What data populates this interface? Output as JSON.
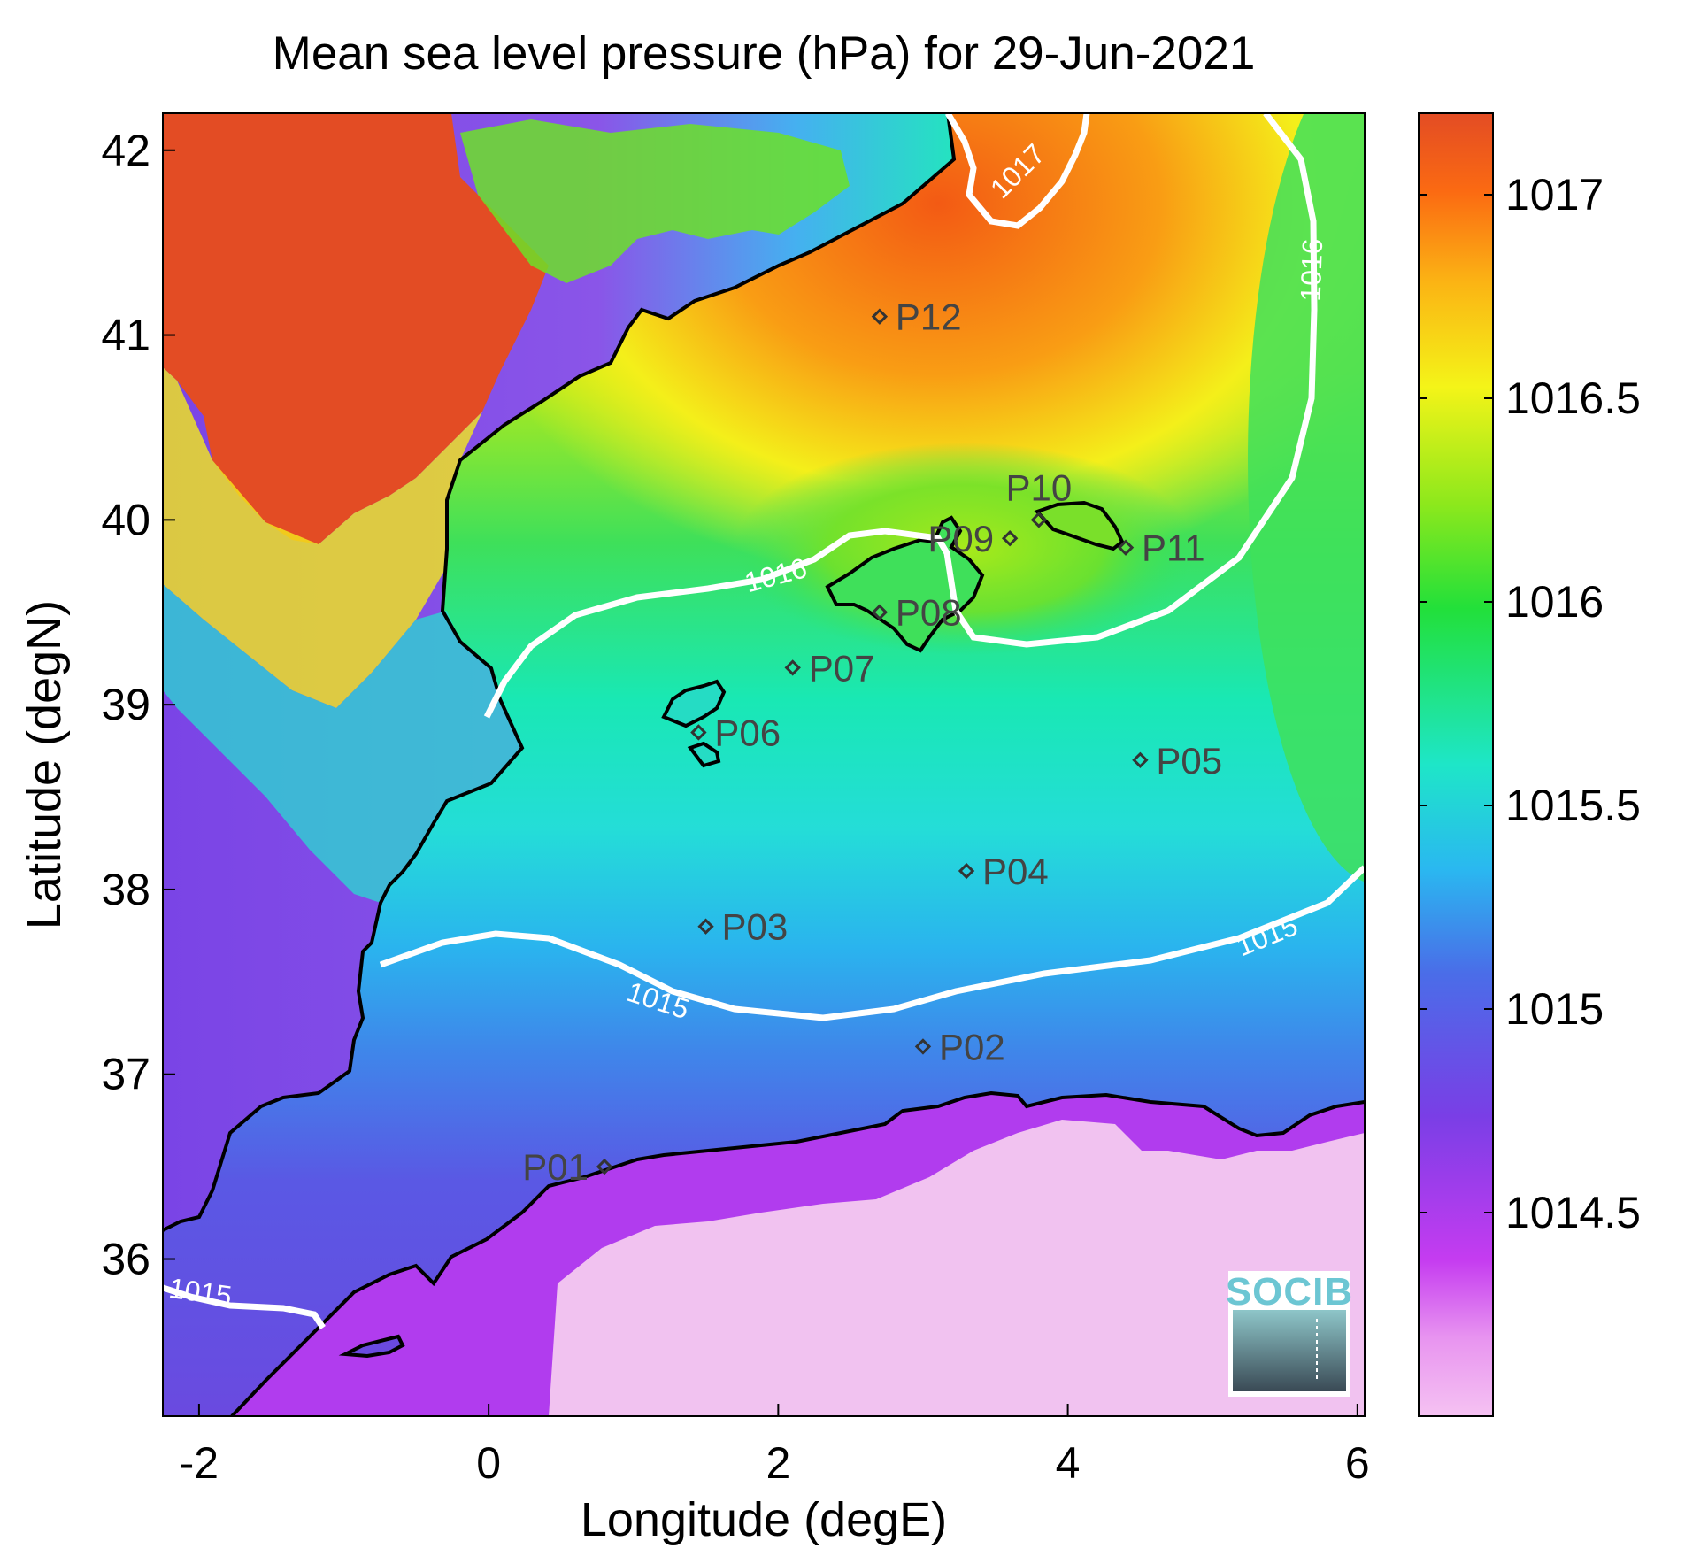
{
  "title": "Mean sea level pressure (hPa) for 29-Jun-2021",
  "axes": {
    "xlabel": "Longitude (degE)",
    "ylabel": "Latitude (degN)",
    "xlim": [
      -2.25,
      6.05
    ],
    "ylim": [
      35.15,
      42.2
    ],
    "xticks": [
      {
        "value": -2,
        "label": "-2"
      },
      {
        "value": 0,
        "label": "0"
      },
      {
        "value": 2,
        "label": "2"
      },
      {
        "value": 4,
        "label": "4"
      },
      {
        "value": 6,
        "label": "6"
      }
    ],
    "yticks": [
      {
        "value": 36,
        "label": "36"
      },
      {
        "value": 37,
        "label": "37"
      },
      {
        "value": 38,
        "label": "38"
      },
      {
        "value": 39,
        "label": "39"
      },
      {
        "value": 40,
        "label": "40"
      },
      {
        "value": 41,
        "label": "41"
      },
      {
        "value": 42,
        "label": "42"
      }
    ]
  },
  "colorbar": {
    "range": [
      1014.0,
      1017.2
    ],
    "ticks": [
      {
        "value": 1014.5,
        "label": "1014.5"
      },
      {
        "value": 1015,
        "label": "1015"
      },
      {
        "value": 1015.5,
        "label": "1015.5"
      },
      {
        "value": 1016,
        "label": "1016"
      },
      {
        "value": 1016.5,
        "label": "1016.5"
      },
      {
        "value": 1017,
        "label": "1017"
      }
    ],
    "colors": [
      "#f5c2f2",
      "#c53cf0",
      "#7a3ee6",
      "#4a6de8",
      "#2ab8f0",
      "#1ee6c8",
      "#22e03a",
      "#8de81c",
      "#f4f418",
      "#fbb414",
      "#fb6a12",
      "#e34c24"
    ]
  },
  "contours": [
    {
      "label": "1015",
      "lon": -2.0,
      "lat": 35.77
    },
    {
      "label": "1015",
      "lon": 1.15,
      "lat": 37.35
    },
    {
      "label": "1015",
      "lon": 5.4,
      "lat": 37.7
    },
    {
      "label": "1016",
      "lon": 2.0,
      "lat": 39.65
    },
    {
      "label": "1016",
      "lon": 5.75,
      "lat": 41.35
    },
    {
      "label": "1017",
      "lon": 3.7,
      "lat": 41.85
    }
  ],
  "points": [
    {
      "name": "P01",
      "lon": 0.8,
      "lat": 36.5,
      "label_side": "left"
    },
    {
      "name": "P02",
      "lon": 3.0,
      "lat": 37.15,
      "label_side": "right"
    },
    {
      "name": "P03",
      "lon": 1.5,
      "lat": 37.8,
      "label_side": "right"
    },
    {
      "name": "P04",
      "lon": 3.3,
      "lat": 38.1,
      "label_side": "right"
    },
    {
      "name": "P05",
      "lon": 4.5,
      "lat": 38.7,
      "label_side": "right"
    },
    {
      "name": "P06",
      "lon": 1.45,
      "lat": 38.85,
      "label_side": "right"
    },
    {
      "name": "P07",
      "lon": 2.1,
      "lat": 39.2,
      "label_side": "right"
    },
    {
      "name": "P08",
      "lon": 2.7,
      "lat": 39.5,
      "label_side": "right"
    },
    {
      "name": "P09",
      "lon": 3.6,
      "lat": 39.9,
      "label_side": "left"
    },
    {
      "name": "P10",
      "lon": 3.8,
      "lat": 40.0,
      "label_side": "above"
    },
    {
      "name": "P11",
      "lon": 4.4,
      "lat": 39.85,
      "label_side": "right"
    },
    {
      "name": "P12",
      "lon": 2.7,
      "lat": 41.1,
      "label_side": "right"
    }
  ],
  "logo": {
    "text": "SOCIB"
  }
}
